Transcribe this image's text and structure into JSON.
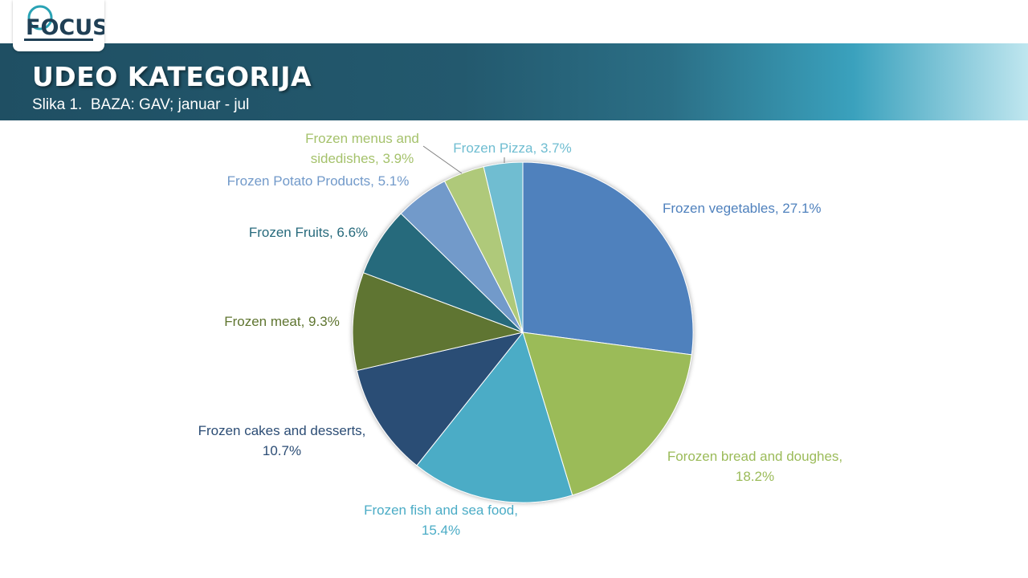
{
  "brand": {
    "logo_text": "FOCUS",
    "colors": {
      "dark": "#1f3f55",
      "accent": "#2aa3b5"
    }
  },
  "header": {
    "title": "UDEO KATEGORIJA",
    "subtitle": "Slika 1.  BAZA: GAV; januar - jul"
  },
  "chart_data": {
    "type": "pie",
    "start_angle": "12 o'clock",
    "direction": "clockwise",
    "series": [
      {
        "name": "Frozen vegetables",
        "value": 27.1,
        "label": [
          "Frozen vegetables, 27.1%"
        ],
        "color": "#4f81bd",
        "label_color": "#4f81bd"
      },
      {
        "name": "Forozen bread and doughes",
        "value": 18.2,
        "label": [
          "Forozen bread and doughes,",
          "18.2%"
        ],
        "color": "#9bbb59",
        "label_color": "#9bbb59"
      },
      {
        "name": "Frozen fish and sea food",
        "value": 15.4,
        "label": [
          "Frozen fish and sea food,",
          "15.4%"
        ],
        "color": "#4bacc6",
        "label_color": "#4bacc6"
      },
      {
        "name": "Frozen cakes and desserts",
        "value": 10.7,
        "label": [
          "Frozen cakes and desserts,",
          "10.7%"
        ],
        "color": "#2c4d75",
        "label_color": "#2c4d75"
      },
      {
        "name": "Frozen meat",
        "value": 9.3,
        "label": [
          "Frozen meat, 9.3%"
        ],
        "color": "#5f7530",
        "label_color": "#5f7530"
      },
      {
        "name": "Frozen Fruits",
        "value": 6.6,
        "label": [
          "Frozen Fruits, 6.6%"
        ],
        "color": "#276a7c",
        "label_color": "#276a7c"
      },
      {
        "name": "Frozen Potato Products",
        "value": 5.1,
        "label": [
          "Frozen Potato Products, 5.1%"
        ],
        "color": "#729aca",
        "label_color": "#729aca"
      },
      {
        "name": "Frozen menus and sidedishes",
        "value": 3.9,
        "label": [
          "Frozen menus and",
          "sidedishes, 3.9%"
        ],
        "color": "#afc97a",
        "label_color": "#a5c26c"
      },
      {
        "name": "Frozen Pizza",
        "value": 3.7,
        "label": [
          "Frozen Pizza, 3.7%"
        ],
        "color": "#6fbdd1",
        "label_color": "#6fbdd1"
      }
    ]
  }
}
